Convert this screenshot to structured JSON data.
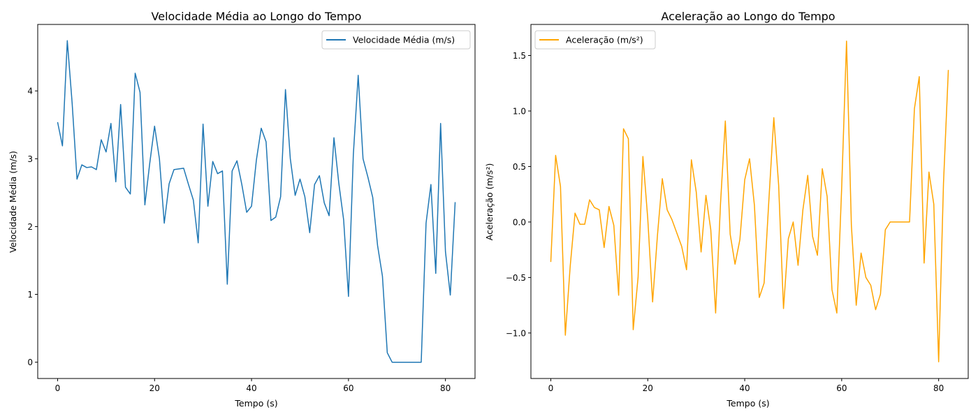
{
  "chart_data": [
    {
      "type": "line",
      "title": "Velocidade Média ao Longo do Tempo",
      "xlabel": "Tempo (s)",
      "ylabel": "Velocidade Média (m/s)",
      "xlim": [
        -4.1,
        86.1
      ],
      "ylim": [
        -0.24,
        4.98
      ],
      "xticks": [
        0,
        20,
        40,
        60,
        80
      ],
      "yticks": [
        0,
        1,
        2,
        3,
        4
      ],
      "grid": false,
      "legend": "upper right",
      "color": "#1f77b4",
      "series": [
        {
          "name": "Velocidade Média (m/s)",
          "x": [
            0,
            1,
            2,
            3,
            4,
            5,
            6,
            7,
            8,
            9,
            10,
            11,
            12,
            13,
            14,
            15,
            16,
            17,
            18,
            19,
            20,
            21,
            22,
            23,
            24,
            25,
            26,
            27,
            28,
            29,
            30,
            31,
            32,
            33,
            34,
            35,
            36,
            37,
            38,
            39,
            40,
            41,
            42,
            43,
            44,
            45,
            46,
            47,
            48,
            49,
            50,
            51,
            52,
            53,
            54,
            55,
            56,
            57,
            58,
            59,
            60,
            61,
            62,
            63,
            64,
            65,
            66,
            67,
            68,
            69,
            70,
            71,
            72,
            73,
            74,
            75,
            76,
            77,
            78,
            79,
            80,
            81,
            82
          ],
          "values": [
            3.54,
            3.19,
            4.74,
            3.82,
            2.7,
            2.91,
            2.87,
            2.88,
            2.84,
            3.28,
            3.1,
            3.52,
            2.66,
            3.8,
            2.58,
            2.48,
            4.26,
            3.98,
            2.32,
            2.93,
            3.48,
            3.0,
            2.05,
            2.63,
            2.84,
            2.85,
            2.86,
            2.62,
            2.39,
            1.76,
            3.51,
            2.3,
            2.96,
            2.78,
            2.82,
            1.15,
            2.82,
            2.97,
            2.62,
            2.21,
            2.3,
            2.98,
            3.45,
            3.25,
            2.09,
            2.14,
            2.44,
            4.02,
            3.0,
            2.46,
            2.7,
            2.44,
            1.91,
            2.62,
            2.75,
            2.35,
            2.16,
            3.31,
            2.64,
            2.1,
            0.97,
            3.06,
            4.23,
            3.0,
            2.73,
            2.43,
            1.72,
            1.27,
            0.14,
            0.0,
            0.0,
            0.0,
            0.0,
            0.0,
            0.0,
            0.0,
            2.05,
            2.62,
            1.31,
            3.52,
            1.63,
            0.99,
            2.36
          ]
        }
      ]
    },
    {
      "type": "line",
      "title": "Aceleração ao Longo do Tempo",
      "xlabel": "Tempo (s)",
      "ylabel": "Aceleração (m/s²)",
      "xlim": [
        -4.1,
        86.1
      ],
      "ylim": [
        -1.41,
        1.78
      ],
      "xticks": [
        0,
        20,
        40,
        60,
        80
      ],
      "yticks": [
        -1.0,
        -0.5,
        0.0,
        0.5,
        1.0,
        1.5
      ],
      "ytick_labels": [
        "−1.0",
        "−0.5",
        "0.0",
        "0.5",
        "1.0",
        "1.5"
      ],
      "grid": false,
      "legend": "upper left",
      "color": "#ffa500",
      "series": [
        {
          "name": "Aceleração (m/s²)",
          "x": [
            0,
            1,
            2,
            3,
            4,
            5,
            6,
            7,
            8,
            9,
            10,
            11,
            12,
            13,
            14,
            15,
            16,
            17,
            18,
            19,
            20,
            21,
            22,
            23,
            24,
            25,
            26,
            27,
            28,
            29,
            30,
            31,
            32,
            33,
            34,
            35,
            36,
            37,
            38,
            39,
            40,
            41,
            42,
            43,
            44,
            45,
            46,
            47,
            48,
            49,
            50,
            51,
            52,
            53,
            54,
            55,
            56,
            57,
            58,
            59,
            60,
            61,
            62,
            63,
            64,
            65,
            66,
            67,
            68,
            69,
            70,
            71,
            72,
            73,
            74,
            75,
            76,
            77,
            78,
            79,
            80,
            81,
            82
          ],
          "values": [
            -0.36,
            0.6,
            0.32,
            -1.02,
            -0.4,
            0.08,
            -0.02,
            -0.02,
            0.2,
            0.13,
            0.11,
            -0.23,
            0.14,
            -0.03,
            -0.66,
            0.84,
            0.75,
            -0.97,
            -0.5,
            0.59,
            0.03,
            -0.72,
            -0.12,
            0.39,
            0.11,
            0.02,
            -0.1,
            -0.22,
            -0.43,
            0.56,
            0.27,
            -0.27,
            0.24,
            -0.07,
            -0.82,
            0.16,
            0.91,
            -0.11,
            -0.38,
            -0.16,
            0.38,
            0.57,
            0.15,
            -0.68,
            -0.55,
            0.21,
            0.94,
            0.33,
            -0.78,
            -0.15,
            0.0,
            -0.39,
            0.11,
            0.42,
            -0.13,
            -0.3,
            0.48,
            0.23,
            -0.61,
            -0.82,
            0.31,
            1.63,
            -0.03,
            -0.75,
            -0.28,
            -0.5,
            -0.57,
            -0.79,
            -0.65,
            -0.07,
            0.0,
            0.0,
            0.0,
            0.0,
            0.0,
            1.02,
            1.31,
            -0.37,
            0.45,
            0.16,
            -1.26,
            0.35,
            1.37
          ]
        }
      ]
    }
  ]
}
